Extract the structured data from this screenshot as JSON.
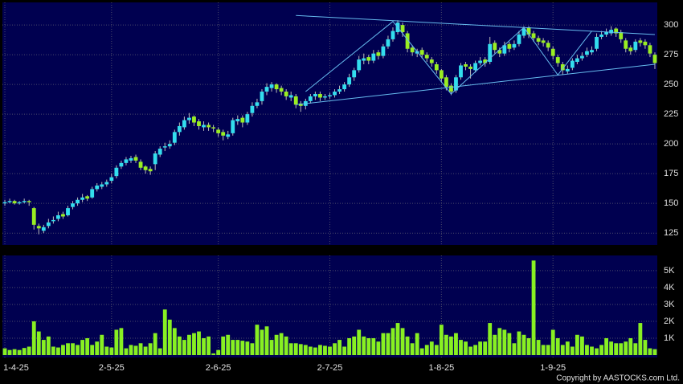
{
  "chart_data": {
    "type": "candlestick",
    "categories": [
      "1-4-25",
      null,
      null,
      null,
      null,
      null,
      null,
      null,
      null,
      null,
      null,
      null,
      null,
      null,
      null,
      null,
      null,
      null,
      null,
      null,
      null,
      null,
      "2-5-25",
      null,
      null,
      null,
      null,
      null,
      null,
      null,
      null,
      null,
      null,
      null,
      null,
      null,
      null,
      null,
      null,
      null,
      null,
      null,
      null,
      null,
      "2-6-25",
      null,
      null,
      null,
      null,
      null,
      null,
      null,
      null,
      null,
      null,
      null,
      null,
      null,
      null,
      null,
      null,
      null,
      null,
      null,
      null,
      null,
      null,
      "2-7-25",
      null,
      null,
      null,
      null,
      null,
      null,
      null,
      null,
      null,
      null,
      null,
      null,
      null,
      null,
      null,
      null,
      null,
      null,
      null,
      null,
      null,
      null,
      "1-8-25",
      null,
      null,
      null,
      null,
      null,
      null,
      null,
      null,
      null,
      null,
      null,
      null,
      null,
      null,
      null,
      null,
      null,
      null,
      null,
      null,
      null,
      null,
      "1-9-25",
      null,
      null,
      null,
      null,
      null,
      null,
      null,
      null,
      null,
      null,
      null,
      null,
      null,
      null,
      null,
      null,
      null,
      null,
      null,
      null,
      null
    ],
    "open": [
      150,
      151,
      152,
      150,
      151,
      152,
      146,
      131,
      127,
      131,
      135,
      137,
      141,
      140,
      147,
      150,
      153,
      156,
      155,
      162,
      164,
      166,
      169,
      173,
      181,
      184,
      186,
      189,
      185,
      181,
      179,
      183,
      191,
      197,
      198,
      201,
      210,
      214,
      220,
      223,
      219,
      214,
      216,
      214,
      212,
      210,
      206,
      209,
      219,
      222,
      218,
      226,
      232,
      236,
      244,
      247,
      250,
      247,
      244,
      239,
      240,
      234,
      232,
      236,
      240,
      242,
      239,
      240,
      241,
      244,
      246,
      250,
      256,
      262,
      270,
      273,
      270,
      277,
      274,
      282,
      288,
      294,
      300,
      293,
      281,
      276,
      279,
      275,
      271,
      267,
      262,
      256,
      249,
      245,
      256,
      267,
      265,
      262,
      268,
      271,
      269,
      285,
      279,
      276,
      284,
      281,
      284,
      291,
      298,
      293,
      289,
      287,
      285,
      280,
      273,
      267,
      261,
      264,
      269,
      272,
      275,
      277,
      280,
      290,
      292,
      293,
      297,
      294,
      287,
      281,
      279,
      287,
      286,
      283,
      275
    ],
    "high": [
      153,
      154,
      153,
      152,
      154,
      153,
      147,
      133,
      132,
      137,
      139,
      143,
      143,
      148,
      152,
      155,
      158,
      157,
      164,
      167,
      168,
      170,
      175,
      182,
      186,
      189,
      190,
      191,
      187,
      182,
      181,
      194,
      198,
      201,
      203,
      212,
      218,
      223,
      226,
      224,
      221,
      219,
      218,
      216,
      214,
      212,
      211,
      222,
      224,
      224,
      227,
      235,
      238,
      246,
      251,
      252,
      251,
      249,
      246,
      244,
      242,
      236,
      238,
      242,
      244,
      244,
      242,
      243,
      246,
      249,
      252,
      259,
      264,
      274,
      276,
      275,
      279,
      279,
      284,
      291,
      298,
      304,
      302,
      295,
      283,
      280,
      281,
      277,
      273,
      269,
      263,
      258,
      251,
      258,
      268,
      269,
      267,
      270,
      273,
      273,
      290,
      287,
      281,
      286,
      286,
      287,
      295,
      299,
      299,
      295,
      291,
      289,
      287,
      282,
      275,
      269,
      266,
      272,
      275,
      277,
      281,
      282,
      293,
      295,
      297,
      299,
      298,
      296,
      289,
      283,
      288,
      289,
      288,
      285,
      277
    ],
    "low": [
      148,
      150,
      149,
      149,
      150,
      148,
      128,
      124,
      125,
      129,
      133,
      135,
      137,
      139,
      145,
      148,
      151,
      152,
      154,
      160,
      162,
      164,
      167,
      171,
      179,
      182,
      184,
      184,
      178,
      175,
      174,
      178,
      189,
      194,
      196,
      199,
      207,
      212,
      217,
      215,
      212,
      211,
      211,
      210,
      206,
      203,
      204,
      207,
      216,
      214,
      216,
      223,
      230,
      233,
      241,
      244,
      243,
      241,
      237,
      236,
      230,
      227,
      229,
      234,
      237,
      236,
      237,
      238,
      239,
      242,
      244,
      248,
      253,
      260,
      267,
      267,
      268,
      271,
      272,
      280,
      286,
      292,
      290,
      277,
      274,
      273,
      272,
      269,
      265,
      259,
      252,
      245,
      241,
      243,
      254,
      262,
      255,
      260,
      266,
      265,
      267,
      276,
      273,
      274,
      277,
      279,
      282,
      289,
      289,
      286,
      283,
      282,
      278,
      271,
      265,
      258,
      259,
      262,
      267,
      270,
      273,
      275,
      278,
      288,
      290,
      291,
      290,
      285,
      277,
      275,
      277,
      282,
      280,
      273,
      263
    ],
    "close": [
      151,
      152,
      150,
      151,
      152,
      151,
      132,
      129,
      130,
      134,
      136,
      140,
      139,
      146,
      150,
      153,
      155,
      154,
      162,
      165,
      166,
      168,
      172,
      180,
      184,
      187,
      188,
      186,
      180,
      178,
      177,
      192,
      196,
      198,
      200,
      210,
      215,
      220,
      222,
      218,
      215,
      216,
      214,
      213,
      209,
      207,
      208,
      220,
      221,
      218,
      225,
      232,
      235,
      244,
      248,
      250,
      246,
      244,
      240,
      241,
      233,
      232,
      236,
      240,
      242,
      239,
      240,
      241,
      244,
      246,
      250,
      256,
      262,
      271,
      272,
      270,
      276,
      274,
      282,
      288,
      295,
      302,
      294,
      280,
      277,
      278,
      275,
      272,
      268,
      262,
      255,
      248,
      244,
      256,
      266,
      265,
      263,
      268,
      270,
      268,
      284,
      279,
      276,
      283,
      280,
      284,
      292,
      297,
      292,
      289,
      286,
      285,
      281,
      274,
      268,
      262,
      263,
      270,
      272,
      274,
      278,
      279,
      290,
      292,
      294,
      296,
      293,
      288,
      280,
      278,
      286,
      285,
      283,
      276,
      268
    ],
    "volume": [
      400,
      300,
      350,
      300,
      420,
      500,
      2000,
      1400,
      900,
      1100,
      500,
      450,
      600,
      700,
      700,
      600,
      900,
      1000,
      600,
      800,
      1200,
      500,
      450,
      1500,
      1600,
      400,
      600,
      550,
      700,
      500,
      700,
      1300,
      400,
      2700,
      2100,
      1600,
      1100,
      900,
      1200,
      1300,
      1400,
      1000,
      1100,
      100,
      300,
      1100,
      1200,
      900,
      900,
      850,
      800,
      700,
      1800,
      1500,
      1700,
      900,
      1200,
      1300,
      1100,
      700,
      700,
      650,
      600,
      500,
      450,
      600,
      550,
      500,
      700,
      900,
      500,
      1000,
      1100,
      1500,
      1100,
      1000,
      1000,
      800,
      1300,
      1300,
      1600,
      1900,
      1600,
      1100,
      700,
      1300,
      400,
      600,
      800,
      600,
      1800,
      1200,
      1100,
      1300,
      900,
      800,
      500,
      600,
      800,
      800,
      1900,
      1200,
      1600,
      1500,
      1300,
      700,
      1400,
      1200,
      1000,
      5600,
      900,
      600,
      600,
      1500,
      1000,
      600,
      800,
      500,
      1200,
      1100,
      600,
      500,
      400,
      600,
      1000,
      800,
      700,
      700,
      800,
      1000,
      700,
      1900,
      900,
      400,
      350
    ],
    "up_color": "#33ddee",
    "down_color": "#99ee22",
    "volume_color": "#88f022",
    "trendline_color": "#66bbee",
    "trendlines": [
      {
        "x": [
          60,
          134
        ],
        "y": [
          308,
          292
        ]
      },
      {
        "x": [
          60,
          134
        ],
        "y": [
          233,
          267
        ]
      },
      {
        "x": [
          62,
          80,
          92,
          107,
          114,
          121
        ],
        "y": [
          244,
          303,
          242,
          298,
          258,
          295
        ]
      }
    ],
    "ylim": [
      115,
      319
    ],
    "yticks": [
      125,
      150,
      175,
      200,
      225,
      250,
      275,
      300
    ],
    "vol_ylim": [
      0,
      5900
    ],
    "vol_yticks": [
      {
        "value": 1000,
        "label": "1K"
      },
      {
        "value": 2000,
        "label": "2K"
      },
      {
        "value": 3000,
        "label": "3K"
      },
      {
        "value": 4000,
        "label": "4K"
      },
      {
        "value": 5000,
        "label": "5K"
      }
    ],
    "grid": true,
    "copyright": "Copyright by AASTOCKS.com Ltd."
  }
}
